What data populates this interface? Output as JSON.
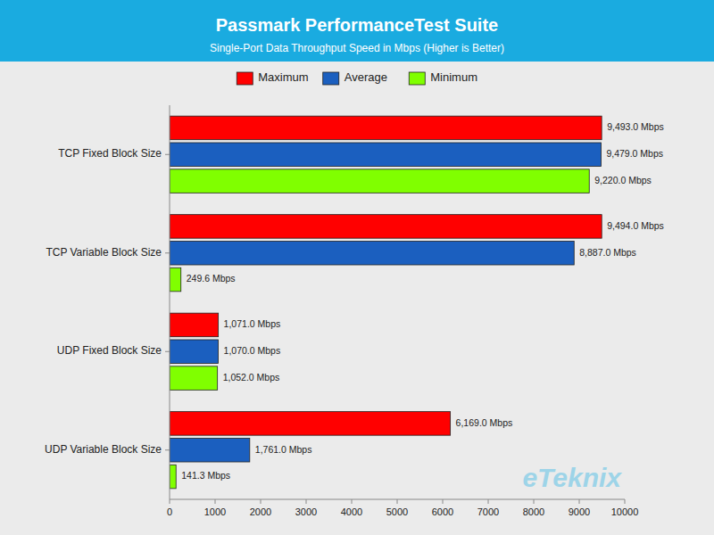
{
  "chart_data": {
    "type": "bar",
    "orientation": "horizontal",
    "title": "Passmark PerformanceTest Suite",
    "subtitle": "Single-Port Data Throughput Speed in Mbps (Higher is Better)",
    "categories": [
      "UDP Variable Block Size",
      "UDP Fixed Block Size",
      "TCP Variable Block Size",
      "TCP Fixed Block Size"
    ],
    "series": [
      {
        "name": "Maximum",
        "color": "#FF0000",
        "values": [
          6169.0,
          1071.0,
          9494.0,
          9493.0
        ],
        "value_labels": [
          "6,169.0 Mbps",
          "1,071.0 Mbps",
          "9,494.0 Mbps",
          "9,493.0 Mbps"
        ]
      },
      {
        "name": "Average",
        "color": "#1B5FBF",
        "values": [
          1761.0,
          1070.0,
          8887.0,
          9479.0
        ],
        "value_labels": [
          "1,761.0 Mbps",
          "1,070.0 Mbps",
          "8,887.0 Mbps",
          "9,479.0 Mbps"
        ]
      },
      {
        "name": "Minimum",
        "color": "#80FF00",
        "values": [
          141.3,
          1052.0,
          249.6,
          9220.0
        ],
        "value_labels": [
          "141.3 Mbps",
          "1,052.0 Mbps",
          "249.6 Mbps",
          "9,220.0 Mbps"
        ]
      }
    ],
    "xlim": [
      0,
      10000
    ],
    "xticks": [
      0,
      1000,
      2000,
      3000,
      4000,
      5000,
      6000,
      7000,
      8000,
      9000,
      10000
    ],
    "data_labels": true,
    "legend": "top",
    "grid": false,
    "annotations": [
      "eTeknix"
    ]
  }
}
